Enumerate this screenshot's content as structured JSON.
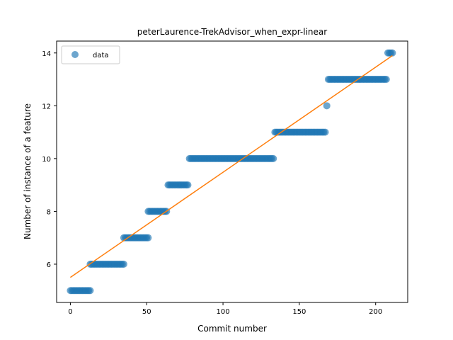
{
  "chart_data": {
    "type": "scatter",
    "title": "peterLaurence-TrekAdvisor_when_expr-linear",
    "xlabel": "Commit number",
    "ylabel": "Number of instance of a feature",
    "xlim": [
      -9,
      221
    ],
    "ylim": [
      4.55,
      14.45
    ],
    "xticks": [
      0,
      50,
      100,
      150,
      200
    ],
    "yticks": [
      6,
      8,
      10,
      12,
      14
    ],
    "legend": {
      "placement": "top-left",
      "entries": [
        "data"
      ]
    },
    "colors": {
      "data": "#1f77b4",
      "fit": "#ff7f0e"
    },
    "segments": [
      {
        "x_from": 0,
        "x_to": 13,
        "y": 5
      },
      {
        "x_from": 13,
        "x_to": 35,
        "y": 6
      },
      {
        "x_from": 35,
        "x_to": 51,
        "y": 7
      },
      {
        "x_from": 51,
        "x_to": 63,
        "y": 8
      },
      {
        "x_from": 64,
        "x_to": 77,
        "y": 9
      },
      {
        "x_from": 78,
        "x_to": 133,
        "y": 10
      },
      {
        "x_from": 134,
        "x_to": 167,
        "y": 11
      },
      {
        "x_from": 168,
        "x_to": 168,
        "y": 12
      },
      {
        "x_from": 169,
        "x_to": 207,
        "y": 13
      },
      {
        "x_from": 208,
        "x_to": 211,
        "y": 14
      }
    ],
    "fit_line": {
      "x": [
        0,
        211
      ],
      "y": [
        5.5,
        13.9
      ]
    }
  }
}
